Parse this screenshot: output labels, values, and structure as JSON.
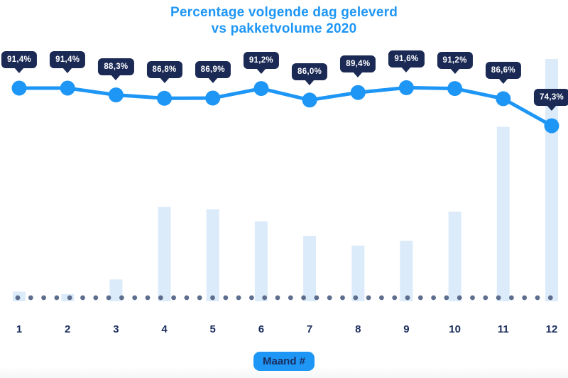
{
  "title": {
    "line1": "Percentage volgende dag geleverd",
    "line2": "vs pakketvolume 2020"
  },
  "x_axis": {
    "label": "Maand #",
    "categories": [
      "1",
      "2",
      "3",
      "4",
      "5",
      "6",
      "7",
      "8",
      "9",
      "10",
      "11",
      "12"
    ]
  },
  "chart_data": {
    "type": "line",
    "title": "Percentage volgende dag geleverd vs pakketvolume 2020",
    "xlabel": "Maand #",
    "ylabel": "",
    "categories": [
      1,
      2,
      3,
      4,
      5,
      6,
      7,
      8,
      9,
      10,
      11,
      12
    ],
    "grid": false,
    "legend": "none",
    "series": [
      {
        "name": "Percentage volgende dag geleverd",
        "type": "line",
        "unit": "%",
        "values": [
          91.4,
          91.4,
          88.3,
          86.8,
          86.9,
          91.2,
          86.0,
          89.4,
          91.6,
          91.2,
          86.6,
          74.3
        ],
        "labels": [
          "91,4%",
          "91,4%",
          "88,3%",
          "86,8%",
          "86,9%",
          "91,2%",
          "86,0%",
          "89,4%",
          "91,6%",
          "91,2%",
          "86,6%",
          "74,3%"
        ]
      },
      {
        "name": "Pakketvolume 2020",
        "type": "bar",
        "unit": "relative (max month = 100)",
        "values": [
          4,
          3,
          9,
          39,
          38,
          33,
          27,
          23,
          25,
          37,
          72,
          100
        ]
      }
    ]
  },
  "colors": {
    "accent_blue": "#1e96f5",
    "navy_text": "#1b2d5e",
    "tooltip_bg": "#1b2a55",
    "tooltip_text": "#ffffff",
    "bar_fill": "#dcebfa",
    "baseline_dot": "#5d6d8d",
    "background": "#ffffff"
  }
}
